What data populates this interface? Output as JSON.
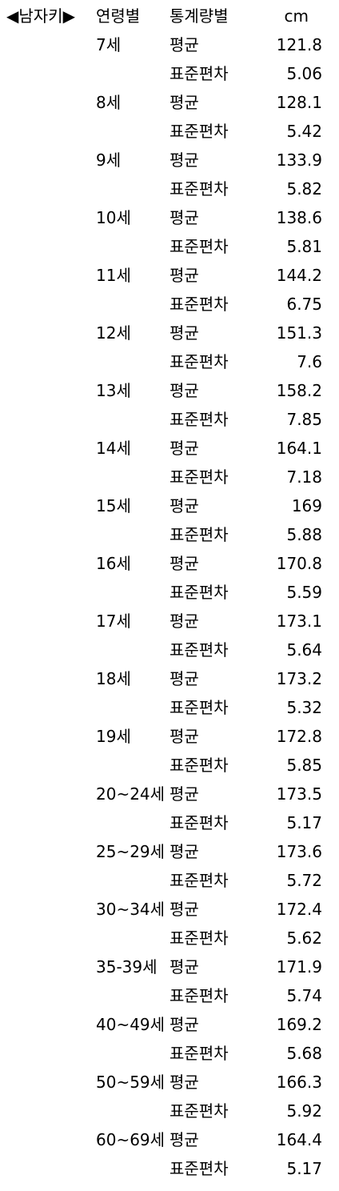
{
  "header": {
    "title": "◀남자키▶",
    "age_col": "연령별",
    "stat_col": "통계량별",
    "unit_col": "cm"
  },
  "rows": [
    {
      "age": "7세",
      "mean_label": "평균",
      "mean": "121.8",
      "sd_label": "표준편차",
      "sd": "5.06"
    },
    {
      "age": "8세",
      "mean_label": "평균",
      "mean": "128.1",
      "sd_label": "표준편차",
      "sd": "5.42"
    },
    {
      "age": "9세",
      "mean_label": "평균",
      "mean": "133.9",
      "sd_label": "표준편차",
      "sd": "5.82"
    },
    {
      "age": "10세",
      "mean_label": "평균",
      "mean": "138.6",
      "sd_label": "표준편차",
      "sd": "5.81"
    },
    {
      "age": "11세",
      "mean_label": "평균",
      "mean": "144.2",
      "sd_label": "표준편차",
      "sd": "6.75"
    },
    {
      "age": "12세",
      "mean_label": "평균",
      "mean": "151.3",
      "sd_label": "표준편차",
      "sd": "7.6"
    },
    {
      "age": "13세",
      "mean_label": "평균",
      "mean": "158.2",
      "sd_label": "표준편차",
      "sd": "7.85"
    },
    {
      "age": "14세",
      "mean_label": "평균",
      "mean": "164.1",
      "sd_label": "표준편차",
      "sd": "7.18"
    },
    {
      "age": "15세",
      "mean_label": "평균",
      "mean": "169",
      "sd_label": "표준편차",
      "sd": "5.88"
    },
    {
      "age": "16세",
      "mean_label": "평균",
      "mean": "170.8",
      "sd_label": "표준편차",
      "sd": "5.59"
    },
    {
      "age": "17세",
      "mean_label": "평균",
      "mean": "173.1",
      "sd_label": "표준편차",
      "sd": "5.64"
    },
    {
      "age": "18세",
      "mean_label": "평균",
      "mean": "173.2",
      "sd_label": "표준편차",
      "sd": "5.32"
    },
    {
      "age": "19세",
      "mean_label": "평균",
      "mean": "172.8",
      "sd_label": "표준편차",
      "sd": "5.85"
    },
    {
      "age": "20~24세",
      "mean_label": "평균",
      "mean": "173.5",
      "sd_label": "표준편차",
      "sd": "5.17"
    },
    {
      "age": "25~29세",
      "mean_label": "평균",
      "mean": "173.6",
      "sd_label": "표준편차",
      "sd": "5.72"
    },
    {
      "age": "30~34세",
      "mean_label": "평균",
      "mean": "172.4",
      "sd_label": "표준편차",
      "sd": "5.62"
    },
    {
      "age": "35-39세",
      "mean_label": "평균",
      "mean": "171.9",
      "sd_label": "표준편차",
      "sd": "5.74"
    },
    {
      "age": "40~49세",
      "mean_label": "평균",
      "mean": "169.2",
      "sd_label": "표준편차",
      "sd": "5.68"
    },
    {
      "age": "50~59세",
      "mean_label": "평균",
      "mean": "166.3",
      "sd_label": "표준편차",
      "sd": "5.92"
    },
    {
      "age": "60~69세",
      "mean_label": "평균",
      "mean": "164.4",
      "sd_label": "표준편차",
      "sd": "5.17"
    }
  ]
}
